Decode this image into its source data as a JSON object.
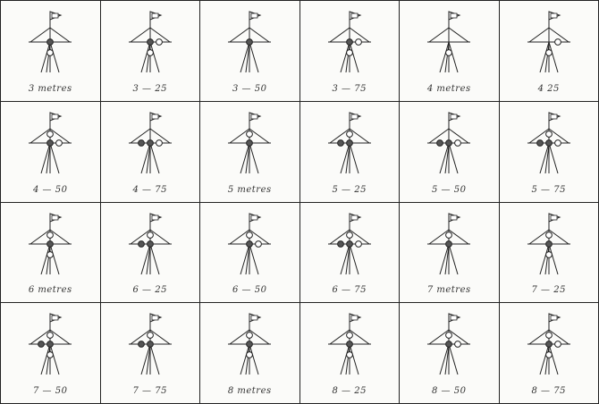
{
  "signals": [
    {
      "label": "3 metres",
      "balls": [
        0,
        0,
        0,
        1,
        1
      ]
    },
    {
      "label": "3 — 25",
      "balls": [
        0,
        0,
        1,
        1,
        1
      ]
    },
    {
      "label": "3 — 50",
      "balls": [
        0,
        0,
        0,
        1,
        0
      ]
    },
    {
      "label": "3 — 75",
      "balls": [
        0,
        0,
        1,
        1,
        1
      ]
    },
    {
      "label": "4 metres",
      "balls": [
        0,
        0,
        0,
        0,
        1
      ]
    },
    {
      "label": "4  25",
      "balls": [
        0,
        0,
        1,
        0,
        1
      ]
    },
    {
      "label": "4 — 50",
      "balls": [
        1,
        0,
        1,
        1,
        0
      ]
    },
    {
      "label": "4 — 75",
      "balls": [
        0,
        1,
        1,
        1,
        0
      ]
    },
    {
      "label": "5 metres",
      "balls": [
        1,
        0,
        0,
        1,
        0
      ]
    },
    {
      "label": "5 — 25",
      "balls": [
        1,
        1,
        0,
        1,
        0
      ]
    },
    {
      "label": "5 — 50",
      "balls": [
        0,
        1,
        1,
        1,
        0
      ]
    },
    {
      "label": "5 — 75",
      "balls": [
        1,
        1,
        1,
        1,
        0
      ]
    },
    {
      "label": "6 metres",
      "balls": [
        1,
        0,
        0,
        1,
        1
      ]
    },
    {
      "label": "6 — 25",
      "balls": [
        1,
        1,
        0,
        1,
        0
      ]
    },
    {
      "label": "6 — 50",
      "balls": [
        1,
        0,
        1,
        1,
        0
      ]
    },
    {
      "label": "6 — 75",
      "balls": [
        1,
        1,
        1,
        1,
        0
      ]
    },
    {
      "label": "7 metres",
      "balls": [
        1,
        0,
        0,
        1,
        0
      ]
    },
    {
      "label": "7 — 25",
      "balls": [
        1,
        0,
        0,
        1,
        1
      ]
    },
    {
      "label": "7 — 50",
      "balls": [
        1,
        1,
        0,
        1,
        1
      ]
    },
    {
      "label": "7 — 75",
      "balls": [
        1,
        1,
        0,
        1,
        0
      ]
    },
    {
      "label": "8 metres",
      "balls": [
        1,
        0,
        0,
        1,
        1
      ]
    },
    {
      "label": "8 — 25",
      "balls": [
        1,
        0,
        0,
        1,
        1
      ]
    },
    {
      "label": "8 — 50",
      "balls": [
        1,
        0,
        1,
        1,
        0
      ]
    },
    {
      "label": "8 — 75",
      "balls": [
        1,
        0,
        1,
        1,
        1
      ]
    }
  ]
}
